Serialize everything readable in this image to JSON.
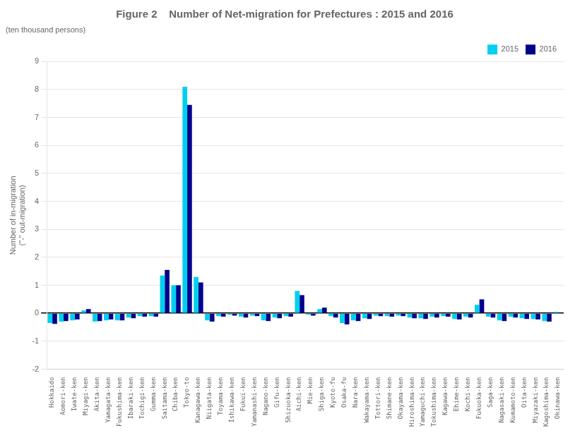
{
  "chart_data": {
    "type": "bar",
    "title": "Figure 2    Number of Net-migration for Prefectures : 2015 and 2016",
    "subtitle": "(ten thousand persons)",
    "ylabel": "Number of in-migration\n(\"-\" out-migration)",
    "categories": [
      "Hokkaido",
      "Aomori-ken",
      "Iwate-ken",
      "Miyagi-ken",
      "Akita-ken",
      "Yamagata-ken",
      "Fukushima-ken",
      "Ibaraki-ken",
      "Tochigi-ken",
      "Gumma-ken",
      "Saitama-ken",
      "Chiba-ken",
      "Tokyo-to",
      "Kanagawa-ken",
      "Niigata-ken",
      "Toyama-ken",
      "Ishikawa-ken",
      "Fukui-ken",
      "Yamanashi-ken",
      "Nagano-ken",
      "Gifu-ken",
      "Shizuoka-ken",
      "Aichi-ken",
      "Mie-ken",
      "Shiga-ken",
      "Kyoto-fu",
      "Osaka-fu",
      "Nara-ken",
      "Wakayama-ken",
      "Tottori-ken",
      "Shimane-ken",
      "Okayama-ken",
      "Hiroshima-ken",
      "Yamaguchi-ken",
      "Tokushima-ken",
      "Kagawa-ken",
      "Ehime-ken",
      "Kochi-ken",
      "Fukuoka-ken",
      "Saga-ken",
      "Nagasaki-ken",
      "Kumamoto-ken",
      "Oita-ken",
      "Miyazaki-ken",
      "Kagoshima-ken",
      "Okinawa-ken"
    ],
    "series": [
      {
        "name": "2015",
        "color": "#00CFEF",
        "values": [
          -0.35,
          -0.3,
          -0.25,
          0.1,
          -0.3,
          -0.25,
          -0.25,
          -0.15,
          -0.1,
          -0.1,
          1.35,
          1.0,
          8.1,
          1.3,
          -0.25,
          -0.1,
          -0.05,
          -0.12,
          -0.08,
          -0.25,
          -0.15,
          -0.1,
          0.8,
          -0.05,
          0.15,
          -0.1,
          -0.35,
          -0.25,
          -0.18,
          -0.08,
          -0.1,
          -0.08,
          -0.15,
          -0.18,
          -0.12,
          -0.1,
          -0.2,
          -0.12,
          0.3,
          -0.12,
          -0.25,
          -0.12,
          -0.18,
          -0.2,
          -0.28,
          0.05
        ]
      },
      {
        "name": "2016",
        "color": "#00008B",
        "values": [
          -0.38,
          -0.28,
          -0.22,
          0.15,
          -0.28,
          -0.22,
          -0.25,
          -0.18,
          -0.12,
          -0.12,
          1.55,
          1.0,
          7.45,
          1.1,
          -0.3,
          -0.12,
          -0.08,
          -0.15,
          -0.1,
          -0.28,
          -0.18,
          -0.12,
          0.65,
          -0.08,
          0.2,
          -0.15,
          -0.4,
          -0.28,
          -0.2,
          -0.1,
          -0.12,
          -0.1,
          -0.18,
          -0.2,
          -0.15,
          -0.12,
          -0.22,
          -0.15,
          0.5,
          -0.15,
          -0.28,
          -0.15,
          -0.2,
          -0.22,
          -0.3,
          0.0
        ]
      }
    ],
    "ylim": [
      -2,
      9
    ],
    "yticks": [
      -2,
      -1,
      0,
      1,
      2,
      3,
      4,
      5,
      6,
      7,
      8,
      9
    ],
    "grid": true,
    "legend": "upper right"
  }
}
